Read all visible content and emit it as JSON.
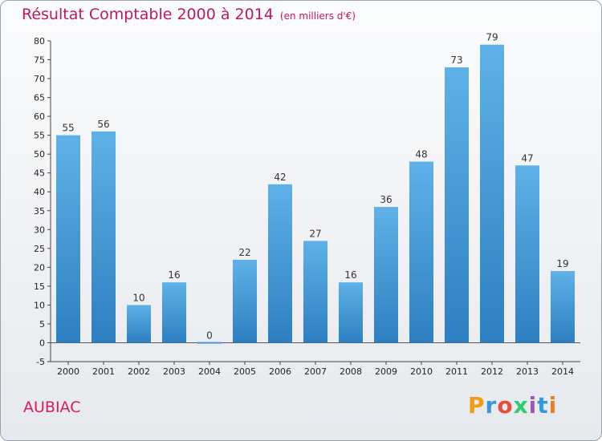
{
  "title": "Résultat Comptable 2000 à 2014",
  "subtitle": "(en milliers d'€)",
  "town": "AUBIAC",
  "logo": {
    "text": "Proxiti",
    "colors": [
      "#f39c12",
      "#3498db",
      "#e74c3c",
      "#2ecc71",
      "#9b59b6",
      "#3498db",
      "#e67e22"
    ]
  },
  "colors": {
    "bar": "#4c9fdb",
    "title": "#c2185b"
  },
  "chart_data": {
    "type": "bar",
    "title": "Résultat Comptable 2000 à 2014",
    "categories": [
      "2000",
      "2001",
      "2002",
      "2003",
      "2004",
      "2005",
      "2006",
      "2007",
      "2008",
      "2009",
      "2010",
      "2011",
      "2012",
      "2013",
      "2014"
    ],
    "values": [
      55,
      56,
      10,
      16,
      0,
      22,
      42,
      27,
      16,
      36,
      48,
      73,
      79,
      47,
      19
    ],
    "ylim": [
      -5,
      80
    ],
    "yticks": [
      -5,
      0,
      5,
      10,
      15,
      20,
      25,
      30,
      35,
      40,
      45,
      50,
      55,
      60,
      65,
      70,
      75,
      80
    ],
    "grid": false
  }
}
